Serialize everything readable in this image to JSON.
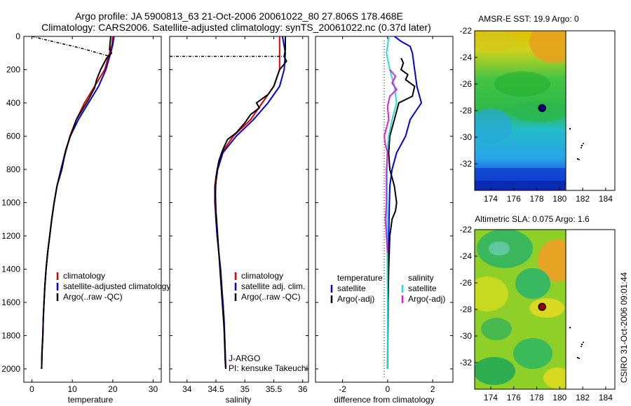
{
  "header": {
    "line1": "Argo profile: JA 5900813_63 21-Oct-2006 20061022_80 27.806S 178.468E",
    "line2": "Climatology: CARS2006. Satellite-adjusted climatology: synTS_20061022.nc (0.37d later)"
  },
  "side_label": "CSIRO 31-Oct-2006 09:01:44",
  "colors": {
    "climatology": "#dd0000",
    "satellite": "#0000dd",
    "argo": "#000000",
    "sat_sal": "#22dddd",
    "argo_sal": "#dd22dd",
    "marker_sst": "#000080",
    "marker_sla": "#990000"
  },
  "chart_data": [
    {
      "type": "line",
      "xlabel": "temperature",
      "xlim": [
        -2,
        32
      ],
      "xticks": [
        0,
        10,
        20,
        30
      ],
      "ylim": [
        0,
        2080
      ],
      "yticks": [
        0,
        200,
        400,
        600,
        800,
        1000,
        1200,
        1400,
        1600,
        1800,
        2000
      ],
      "y_reversed": true,
      "legend": [
        "climatology",
        "satellite-adjusted climatology",
        "Argo(..raw -QC)"
      ],
      "series": [
        {
          "name": "climatology",
          "color": "#dd0000",
          "points": [
            [
              20,
              0
            ],
            [
              19.8,
              50
            ],
            [
              19.2,
              100
            ],
            [
              18,
              200
            ],
            [
              15.5,
              300
            ],
            [
              13,
              400
            ],
            [
              11,
              500
            ],
            [
              9.4,
              600
            ],
            [
              8.3,
              700
            ],
            [
              7.2,
              800
            ],
            [
              6.2,
              900
            ],
            [
              5.5,
              1000
            ],
            [
              4.9,
              1100
            ],
            [
              4.4,
              1200
            ],
            [
              3.9,
              1300
            ],
            [
              3.5,
              1400
            ],
            [
              3.2,
              1500
            ],
            [
              3,
              1600
            ],
            [
              2.8,
              1700
            ],
            [
              2.7,
              1800
            ],
            [
              2.5,
              1900
            ],
            [
              2.4,
              2000
            ]
          ]
        },
        {
          "name": "satellite-adjusted climatology",
          "color": "#0000dd",
          "points": [
            [
              20.3,
              0
            ],
            [
              20,
              50
            ],
            [
              19.5,
              100
            ],
            [
              18.3,
              200
            ],
            [
              16.5,
              300
            ],
            [
              14,
              400
            ],
            [
              11.5,
              500
            ],
            [
              9.5,
              600
            ],
            [
              8.2,
              700
            ],
            [
              7.2,
              800
            ],
            [
              6.2,
              900
            ],
            [
              5.5,
              1000
            ],
            [
              4.9,
              1100
            ],
            [
              4.4,
              1200
            ],
            [
              3.9,
              1300
            ],
            [
              3.5,
              1400
            ],
            [
              3.2,
              1500
            ],
            [
              3,
              1600
            ],
            [
              2.8,
              1700
            ],
            [
              2.7,
              1800
            ],
            [
              2.5,
              1900
            ],
            [
              2.4,
              2000
            ]
          ]
        },
        {
          "name": "Argo(..raw -QC)",
          "color": "#000000",
          "points": [
            [
              19.5,
              0
            ],
            [
              19.3,
              50
            ],
            [
              19.2,
              80
            ],
            [
              19.7,
              100
            ],
            [
              18.5,
              130
            ],
            [
              17,
              200
            ],
            [
              16,
              260
            ],
            [
              15.5,
              310
            ],
            [
              14,
              380
            ],
            [
              12.5,
              440
            ],
            [
              11,
              500
            ],
            [
              9.5,
              600
            ],
            [
              8.4,
              680
            ],
            [
              7.4,
              800
            ],
            [
              6.2,
              900
            ],
            [
              5.5,
              1000
            ],
            [
              4.9,
              1100
            ],
            [
              4.4,
              1200
            ],
            [
              3.9,
              1300
            ],
            [
              3.5,
              1400
            ],
            [
              3.2,
              1500
            ],
            [
              3,
              1600
            ],
            [
              2.8,
              1700
            ],
            [
              2.7,
              1800
            ],
            [
              2.5,
              1900
            ],
            [
              2.4,
              2000
            ]
          ]
        },
        {
          "name": "",
          "color": "#000000",
          "dash": true,
          "points": [
            [
              0,
              0
            ],
            [
              5,
              30
            ],
            [
              12,
              70
            ],
            [
              19.3,
              120
            ]
          ]
        }
      ]
    },
    {
      "type": "line",
      "xlabel": "salinity",
      "xlim": [
        33.7,
        36.1
      ],
      "xticks": [
        34,
        34.5,
        35,
        35.5,
        36
      ],
      "ylim": [
        0,
        2080
      ],
      "yticks": [
        0,
        200,
        400,
        600,
        800,
        1000,
        1200,
        1400,
        1600,
        1800,
        2000
      ],
      "y_reversed": true,
      "legend": [
        "climatology",
        "satellite adj. clim.",
        "Argo(..raw -QC)"
      ],
      "annotation": [
        "J-ARGO",
        "PI: kensuke Takeuchi"
      ],
      "series": [
        {
          "name": "climatology",
          "color": "#dd0000",
          "points": [
            [
              35.6,
              0
            ],
            [
              35.6,
              100
            ],
            [
              35.6,
              200
            ],
            [
              35.5,
              300
            ],
            [
              35.3,
              400
            ],
            [
              35.1,
              500
            ],
            [
              34.8,
              600
            ],
            [
              34.6,
              700
            ],
            [
              34.52,
              800
            ],
            [
              34.48,
              900
            ],
            [
              34.48,
              1000
            ],
            [
              34.5,
              1100
            ],
            [
              34.52,
              1200
            ],
            [
              34.55,
              1300
            ],
            [
              34.58,
              1400
            ],
            [
              34.6,
              1500
            ],
            [
              34.62,
              1600
            ],
            [
              34.64,
              1700
            ],
            [
              34.65,
              1800
            ],
            [
              34.66,
              1900
            ],
            [
              34.67,
              2000
            ]
          ]
        },
        {
          "name": "satellite adj. clim.",
          "color": "#0000dd",
          "points": [
            [
              35.65,
              0
            ],
            [
              35.7,
              100
            ],
            [
              35.68,
              200
            ],
            [
              35.6,
              300
            ],
            [
              35.4,
              400
            ],
            [
              35.15,
              500
            ],
            [
              34.85,
              600
            ],
            [
              34.62,
              700
            ],
            [
              34.53,
              800
            ],
            [
              34.49,
              900
            ],
            [
              34.49,
              1000
            ],
            [
              34.5,
              1100
            ],
            [
              34.52,
              1200
            ],
            [
              34.55,
              1300
            ],
            [
              34.58,
              1400
            ],
            [
              34.6,
              1500
            ],
            [
              34.62,
              1600
            ],
            [
              34.64,
              1700
            ],
            [
              34.65,
              1800
            ],
            [
              34.66,
              1900
            ],
            [
              34.67,
              2000
            ]
          ]
        },
        {
          "name": "Argo(..raw -QC)",
          "color": "#000000",
          "points": [
            [
              35.7,
              0
            ],
            [
              35.7,
              80
            ],
            [
              35.68,
              120
            ],
            [
              35.72,
              150
            ],
            [
              35.6,
              200
            ],
            [
              35.55,
              250
            ],
            [
              35.5,
              300
            ],
            [
              35.4,
              350
            ],
            [
              35.2,
              400
            ],
            [
              35.25,
              430
            ],
            [
              35.1,
              470
            ],
            [
              35,
              520
            ],
            [
              34.85,
              580
            ],
            [
              34.7,
              620
            ],
            [
              34.62,
              680
            ],
            [
              34.55,
              750
            ],
            [
              34.5,
              850
            ],
            [
              34.49,
              950
            ],
            [
              34.5,
              1050
            ],
            [
              34.52,
              1150
            ],
            [
              34.54,
              1250
            ],
            [
              34.56,
              1350
            ],
            [
              34.58,
              1450
            ],
            [
              34.6,
              1550
            ],
            [
              34.62,
              1650
            ],
            [
              34.64,
              1750
            ],
            [
              34.65,
              1850
            ],
            [
              34.66,
              1950
            ],
            [
              34.67,
              2000
            ]
          ]
        },
        {
          "name": "",
          "color": "#000000",
          "dash": true,
          "points": [
            [
              33.7,
              120
            ],
            [
              35.7,
              120
            ]
          ]
        }
      ]
    },
    {
      "type": "line",
      "xlabel": "difference from climatology",
      "xlim": [
        -3.2,
        2.9
      ],
      "xticks": [
        -2,
        0,
        2
      ],
      "ylim": [
        0,
        2080
      ],
      "yticks": [
        0,
        200,
        400,
        600,
        800,
        1000,
        1200,
        1400,
        1600,
        1800,
        2000
      ],
      "y_reversed": true,
      "legend_left_title": "temperature",
      "legend_right_title": "salinity",
      "legend": [
        "satellite",
        "Argo(-adj)",
        "satellite",
        "Argo(-adj)"
      ],
      "series": [
        {
          "name": "satellite",
          "color": "#0000dd",
          "points": [
            [
              0.3,
              0
            ],
            [
              0.6,
              30
            ],
            [
              1,
              60
            ],
            [
              1.1,
              100
            ],
            [
              1.2,
              200
            ],
            [
              1.3,
              300
            ],
            [
              1.5,
              400
            ],
            [
              1,
              500
            ],
            [
              0.8,
              600
            ],
            [
              0.4,
              700
            ],
            [
              0.2,
              800
            ],
            [
              0.1,
              900
            ],
            [
              0.08,
              1000
            ],
            [
              0.05,
              1200
            ],
            [
              0.03,
              1400
            ],
            [
              0.02,
              1600
            ],
            [
              0.01,
              1800
            ],
            [
              0,
              2000
            ]
          ]
        },
        {
          "name": "Argo(-adj)",
          "color": "#000000",
          "points": [
            [
              0.6,
              130
            ],
            [
              0.7,
              160
            ],
            [
              0.6,
              200
            ],
            [
              0.9,
              230
            ],
            [
              0.8,
              260
            ],
            [
              1.2,
              300
            ],
            [
              1.1,
              360
            ],
            [
              0.5,
              400
            ],
            [
              0.4,
              450
            ],
            [
              0.3,
              500
            ],
            [
              0.1,
              600
            ],
            [
              0.05,
              700
            ],
            [
              0.1,
              800
            ],
            [
              0.3,
              900
            ],
            [
              0.4,
              1000
            ],
            [
              0.35,
              1050
            ],
            [
              0.2,
              1100
            ],
            [
              0.1,
              1200
            ],
            [
              0.05,
              1400
            ],
            [
              0.02,
              1600
            ],
            [
              0.01,
              1800
            ],
            [
              0,
              2000
            ]
          ]
        },
        {
          "name": "satellite",
          "color": "#22dddd",
          "points": [
            [
              0.05,
              0
            ],
            [
              0,
              60
            ],
            [
              -0.05,
              100
            ],
            [
              0.1,
              200
            ],
            [
              0.3,
              300
            ],
            [
              0.4,
              400
            ],
            [
              0.2,
              500
            ],
            [
              0.05,
              600
            ],
            [
              -0.02,
              700
            ],
            [
              -0.03,
              800
            ],
            [
              -0.03,
              1000
            ],
            [
              -0.02,
              1200
            ],
            [
              -0.01,
              1400
            ],
            [
              0,
              1600
            ],
            [
              0,
              1800
            ],
            [
              0,
              2000
            ]
          ]
        },
        {
          "name": "Argo(-adj)",
          "color": "#dd22dd",
          "points": [
            [
              0.1,
              200
            ],
            [
              0.35,
              240
            ],
            [
              0.2,
              280
            ],
            [
              0.4,
              320
            ],
            [
              0.1,
              360
            ],
            [
              0,
              420
            ],
            [
              0.05,
              500
            ],
            [
              -0.15,
              600
            ],
            [
              -0.1,
              650
            ],
            [
              0,
              700
            ],
            [
              -0.05,
              800
            ],
            [
              -0.05,
              900
            ],
            [
              -0.05,
              1000
            ],
            [
              -0.1,
              1100
            ],
            [
              -0.05,
              1200
            ],
            [
              0,
              1300
            ]
          ]
        }
      ]
    },
    {
      "type": "heatmap",
      "title": "AMSR-E SST: 19.9 Argo: 0",
      "xlim": [
        172.6,
        184.8
      ],
      "xticks": [
        174,
        176,
        178,
        180,
        182,
        184
      ],
      "ylim": [
        -34,
        -22
      ],
      "yticks": [
        -22,
        -24,
        -26,
        -28,
        -30,
        -32
      ],
      "profile_location": [
        178.468,
        -27.806
      ]
    },
    {
      "type": "heatmap",
      "title": "Altimetric SLA: 0.075 Argo: 1.6",
      "xlim": [
        172.6,
        184.8
      ],
      "xticks": [
        174,
        176,
        178,
        180,
        182,
        184
      ],
      "ylim": [
        -34,
        -22
      ],
      "yticks": [
        -22,
        -24,
        -26,
        -28,
        -30,
        -32
      ],
      "profile_location": [
        178.468,
        -27.806
      ]
    }
  ]
}
